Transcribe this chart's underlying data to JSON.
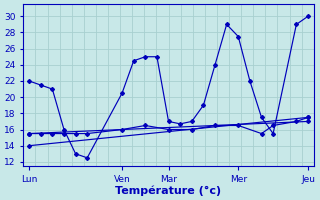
{
  "background_color": "#c8e8e8",
  "grid_color": "#a8d0d0",
  "line_color": "#0000bb",
  "xlabel": "Température (°c)",
  "xlabel_fontsize": 8,
  "tick_fontsize": 6.5,
  "ylim": [
    11.5,
    31.5
  ],
  "yticks": [
    12,
    14,
    16,
    18,
    20,
    22,
    24,
    26,
    28,
    30
  ],
  "xlim": [
    -0.5,
    24.5
  ],
  "n_vgrid": 25,
  "day_ticks": [
    0,
    8,
    12,
    18,
    24
  ],
  "day_labels": [
    "Lun",
    "Ven",
    "Mar",
    "Mer",
    "Jeu"
  ],
  "series1": {
    "x": [
      0,
      1,
      2,
      3,
      4,
      5,
      8,
      9,
      10,
      11,
      12,
      13,
      14,
      15,
      16,
      17,
      18,
      19,
      20,
      21,
      23,
      24
    ],
    "y": [
      22,
      21.5,
      21,
      16,
      13,
      12.5,
      20.5,
      24.5,
      25.0,
      25.0,
      17.0,
      16.7,
      17.0,
      19.0,
      24.0,
      29.0,
      27.5,
      22.0,
      17.5,
      15.5,
      29.0,
      30.0
    ]
  },
  "series2": {
    "x": [
      0,
      1,
      2,
      3,
      4,
      5,
      8,
      10,
      12,
      14,
      16,
      18,
      20,
      21,
      23,
      24
    ],
    "y": [
      15.5,
      15.5,
      15.5,
      15.5,
      15.5,
      15.5,
      16.0,
      16.5,
      16.0,
      16.0,
      16.5,
      16.5,
      15.5,
      16.5,
      17.0,
      17.5
    ]
  },
  "series3": {
    "x": [
      0,
      24
    ],
    "y": [
      15.5,
      17.0
    ]
  },
  "series4": {
    "x": [
      0,
      24
    ],
    "y": [
      14.0,
      17.5
    ]
  }
}
